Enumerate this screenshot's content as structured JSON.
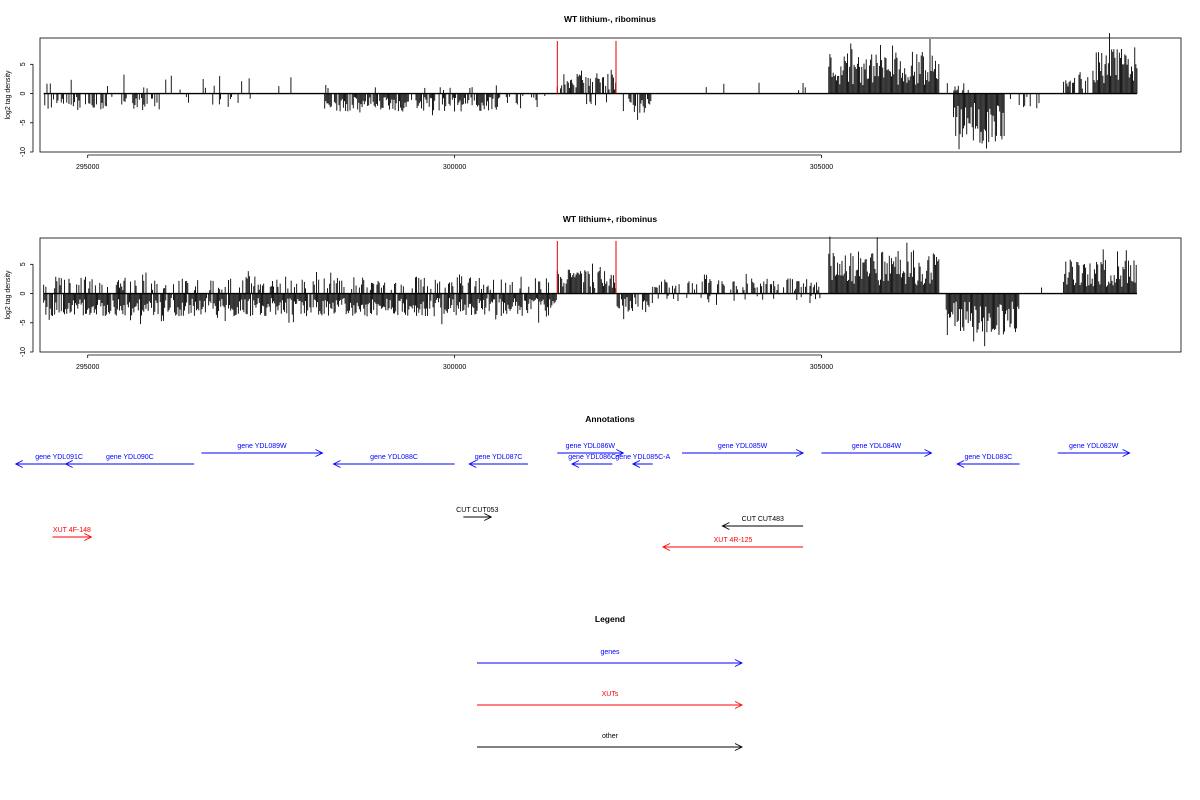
{
  "chart_data": [
    {
      "type": "bar",
      "title": "WT lithium-, ribominus",
      "ylabel": "log2 tag density",
      "xlabel": "",
      "xlim": [
        294350,
        309900
      ],
      "ylim": [
        -10,
        9.5
      ],
      "xticks": [
        295000,
        300000,
        305000
      ],
      "xtick_labels": [
        "295000",
        "300000",
        "305000"
      ],
      "yticks": [
        -10,
        -5,
        0,
        5
      ],
      "ytick_labels": [
        "-10",
        "-5",
        "0",
        "5"
      ],
      "data_range": [
        294400,
        309300
      ],
      "red_markers": [
        301400,
        302200
      ],
      "density_segments": [
        {
          "from": 294400,
          "to": 296000,
          "level": 2.2,
          "sign": -1,
          "density": 0.45
        },
        {
          "from": 294400,
          "to": 297200,
          "level": 2.5,
          "sign": 1,
          "density": 0.06
        },
        {
          "from": 296000,
          "to": 297600,
          "level": 1.5,
          "sign": -1,
          "density": 0.08
        },
        {
          "from": 297200,
          "to": 298200,
          "level": 2.2,
          "sign": 1,
          "density": 0.1
        },
        {
          "from": 298200,
          "to": 300600,
          "level": 2.4,
          "sign": -1,
          "density": 0.75
        },
        {
          "from": 298200,
          "to": 300600,
          "level": 1.2,
          "sign": 1,
          "density": 0.05
        },
        {
          "from": 300600,
          "to": 301300,
          "level": 1.5,
          "sign": -1,
          "density": 0.2
        },
        {
          "from": 301400,
          "to": 302200,
          "level": 2.6,
          "sign": 1,
          "density": 0.8
        },
        {
          "from": 301800,
          "to": 302100,
          "level": 1.8,
          "sign": -1,
          "density": 0.4
        },
        {
          "from": 302300,
          "to": 302700,
          "level": 2.6,
          "sign": -1,
          "density": 0.7
        },
        {
          "from": 302800,
          "to": 305000,
          "level": 1.5,
          "sign": 1,
          "density": 0.03
        },
        {
          "from": 305100,
          "to": 306600,
          "level": 5.5,
          "sign": 1,
          "density": 1.0
        },
        {
          "from": 306700,
          "to": 307100,
          "level": 1.5,
          "sign": 1,
          "density": 0.3
        },
        {
          "from": 306800,
          "to": 307500,
          "level": 6.5,
          "sign": -1,
          "density": 1.0
        },
        {
          "from": 307500,
          "to": 308000,
          "level": 2.0,
          "sign": -1,
          "density": 0.3
        },
        {
          "from": 308300,
          "to": 308700,
          "level": 2.5,
          "sign": 1,
          "density": 0.5
        },
        {
          "from": 308700,
          "to": 309300,
          "level": 6.0,
          "sign": 1,
          "density": 1.0
        }
      ]
    },
    {
      "type": "bar",
      "title": "WT lithium+, ribominus",
      "ylabel": "log2 tag density",
      "xlabel": "",
      "xlim": [
        294350,
        309900
      ],
      "ylim": [
        -10,
        9.5
      ],
      "xticks": [
        295000,
        300000,
        305000
      ],
      "xtick_labels": [
        "295000",
        "300000",
        "305000"
      ],
      "yticks": [
        -10,
        -5,
        0,
        5
      ],
      "ytick_labels": [
        "-10",
        "-5",
        "0",
        "5"
      ],
      "data_range": [
        294400,
        309300
      ],
      "red_markers": [
        301400,
        302200
      ],
      "density_segments": [
        {
          "from": 294400,
          "to": 301400,
          "level": 3.0,
          "sign": -1,
          "density": 0.95
        },
        {
          "from": 294400,
          "to": 301400,
          "level": 2.3,
          "sign": 1,
          "density": 0.35
        },
        {
          "from": 301400,
          "to": 302200,
          "level": 3.3,
          "sign": 1,
          "density": 0.9
        },
        {
          "from": 302200,
          "to": 302700,
          "level": 2.5,
          "sign": -1,
          "density": 0.8
        },
        {
          "from": 302700,
          "to": 305000,
          "level": 2.0,
          "sign": 1,
          "density": 0.5
        },
        {
          "from": 302700,
          "to": 305000,
          "level": 1.2,
          "sign": -1,
          "density": 0.15
        },
        {
          "from": 305100,
          "to": 306600,
          "level": 5.6,
          "sign": 1,
          "density": 1.0
        },
        {
          "from": 306700,
          "to": 307700,
          "level": 5.5,
          "sign": -1,
          "density": 1.0
        },
        {
          "from": 307700,
          "to": 308300,
          "level": 1.0,
          "sign": 1,
          "density": 0.05
        },
        {
          "from": 308300,
          "to": 309300,
          "level": 4.5,
          "sign": 1,
          "density": 1.0
        }
      ]
    }
  ],
  "annotations": {
    "title": "Annotations",
    "features": [
      {
        "label": "gene YDL091C",
        "kind": "gene",
        "direction": "reverse",
        "start": 294020,
        "end": 295200,
        "row": 1
      },
      {
        "label": "gene YDL090C",
        "kind": "gene",
        "direction": "reverse",
        "start": 294700,
        "end": 296450,
        "row": 1
      },
      {
        "label": "gene YDL089W",
        "kind": "gene",
        "direction": "forward",
        "start": 296550,
        "end": 298200,
        "row": 0
      },
      {
        "label": "gene YDL088C",
        "kind": "gene",
        "direction": "reverse",
        "start": 298350,
        "end": 300000,
        "row": 1
      },
      {
        "label": "gene YDL087C",
        "kind": "gene",
        "direction": "reverse",
        "start": 300200,
        "end": 301000,
        "row": 1
      },
      {
        "label": "gene YDL086W",
        "kind": "gene",
        "direction": "forward",
        "start": 301400,
        "end": 302300,
        "row": 0
      },
      {
        "label": "gene YDL086C",
        "kind": "gene",
        "direction": "reverse",
        "start": 301600,
        "end": 302150,
        "row": 1
      },
      {
        "label": "gene YDL085C-A",
        "kind": "gene",
        "direction": "reverse",
        "start": 302430,
        "end": 302700,
        "row": 1
      },
      {
        "label": "gene YDL085W",
        "kind": "gene",
        "direction": "forward",
        "start": 303100,
        "end": 304750,
        "row": 0
      },
      {
        "label": "gene YDL084W",
        "kind": "gene",
        "direction": "forward",
        "start": 305000,
        "end": 306500,
        "row": 0
      },
      {
        "label": "gene YDL083C",
        "kind": "gene",
        "direction": "reverse",
        "start": 306850,
        "end": 307700,
        "row": 1
      },
      {
        "label": "gene YDL082W",
        "kind": "gene",
        "direction": "forward",
        "start": 308220,
        "end": 309200,
        "row": 0
      },
      {
        "label": "CUT CUT053",
        "kind": "other",
        "direction": "forward",
        "start": 300120,
        "end": 300500,
        "row": 3
      },
      {
        "label": "CUT CUT483",
        "kind": "other",
        "direction": "reverse",
        "start": 303650,
        "end": 304750,
        "row": 4
      },
      {
        "label": "XUT 4F-148",
        "kind": "xut",
        "direction": "forward",
        "start": 294520,
        "end": 295050,
        "row": 5
      },
      {
        "label": "XUT 4R-125",
        "kind": "xut",
        "direction": "reverse",
        "start": 302840,
        "end": 304750,
        "row": 6
      }
    ]
  },
  "legend": {
    "title": "Legend",
    "items": [
      {
        "label": "genes",
        "color": "#0000ff"
      },
      {
        "label": "XUTs",
        "color": "#ff0000"
      },
      {
        "label": "other",
        "color": "#000000"
      }
    ]
  },
  "colors": {
    "gene": "#0000ff",
    "xut": "#ff0000",
    "other": "#000000",
    "marker": "#e00000",
    "axis": "#000000"
  }
}
